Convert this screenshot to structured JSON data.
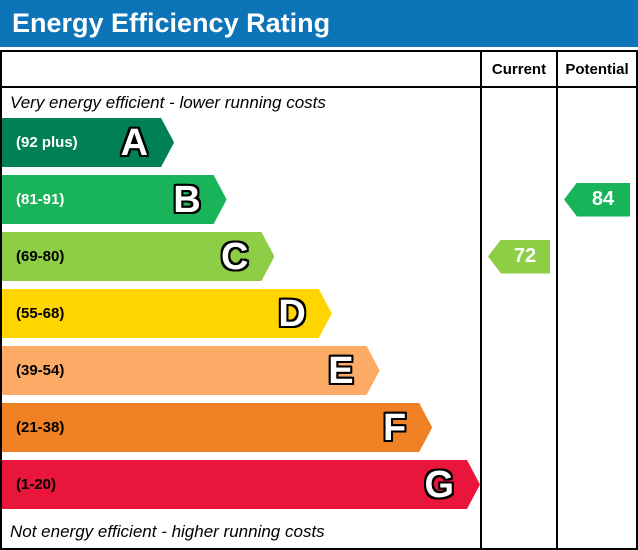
{
  "title": "Energy Efficiency Rating",
  "colors": {
    "header_bg": "#0d74b8",
    "header_text": "#ffffff",
    "border": "#000000"
  },
  "table": {
    "current_label": "Current",
    "potential_label": "Potential"
  },
  "chart_data": {
    "type": "bar",
    "title": "Energy Efficiency Rating",
    "top_note": "Very energy efficient - lower running costs",
    "bottom_note": "Not energy efficient - higher running costs",
    "columns": [
      "Current",
      "Potential"
    ],
    "current": 72,
    "potential": 84,
    "bands": [
      {
        "letter": "A",
        "range": "(92 plus)",
        "min": 92,
        "max": 100,
        "color": "#008054",
        "text_color": "#ffffff",
        "width_pct": 36
      },
      {
        "letter": "B",
        "range": "(81-91)",
        "min": 81,
        "max": 91,
        "color": "#19b459",
        "text_color": "#ffffff",
        "width_pct": 47
      },
      {
        "letter": "C",
        "range": "(69-80)",
        "min": 69,
        "max": 80,
        "color": "#8dce46",
        "text_color": "#000000",
        "width_pct": 57
      },
      {
        "letter": "D",
        "range": "(55-68)",
        "min": 55,
        "max": 68,
        "color": "#ffd500",
        "text_color": "#000000",
        "width_pct": 69
      },
      {
        "letter": "E",
        "range": "(39-54)",
        "min": 39,
        "max": 54,
        "color": "#fcaa65",
        "text_color": "#000000",
        "width_pct": 79
      },
      {
        "letter": "F",
        "range": "(21-38)",
        "min": 21,
        "max": 38,
        "color": "#ef8023",
        "text_color": "#000000",
        "width_pct": 90
      },
      {
        "letter": "G",
        "range": "(1-20)",
        "min": 1,
        "max": 20,
        "color": "#e9153b",
        "text_color": "#000000",
        "width_pct": 100
      }
    ]
  }
}
